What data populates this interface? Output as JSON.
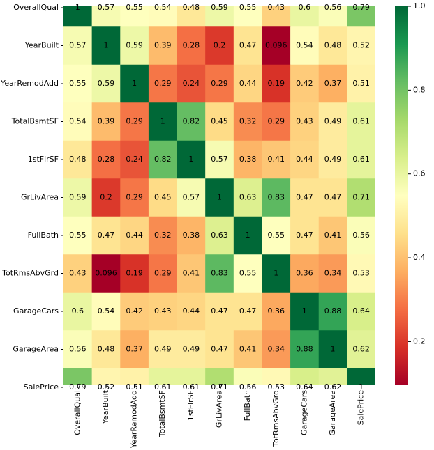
{
  "chart_data": {
    "type": "heatmap",
    "x": [
      "OverallQual",
      "YearBuilt",
      "YearRemodAdd",
      "TotalBsmtSF",
      "1stFlrSF",
      "GrLivArea",
      "FullBath",
      "TotRmsAbvGrd",
      "GarageCars",
      "GarageArea",
      "SalePrice"
    ],
    "y": [
      "OverallQual",
      "YearBuilt",
      "YearRemodAdd",
      "TotalBsmtSF",
      "1stFlrSF",
      "GrLivArea",
      "FullBath",
      "TotRmsAbvGrd",
      "GarageCars",
      "GarageArea",
      "SalePrice"
    ],
    "values": [
      [
        1,
        0.57,
        0.55,
        0.54,
        0.48,
        0.59,
        0.55,
        0.43,
        0.6,
        0.56,
        0.79
      ],
      [
        0.57,
        1,
        0.59,
        0.39,
        0.28,
        0.2,
        0.47,
        0.096,
        0.54,
        0.48,
        0.52
      ],
      [
        0.55,
        0.59,
        1,
        0.29,
        0.24,
        0.29,
        0.44,
        0.19,
        0.42,
        0.37,
        0.51
      ],
      [
        0.54,
        0.39,
        0.29,
        1,
        0.82,
        0.45,
        0.32,
        0.29,
        0.43,
        0.49,
        0.61
      ],
      [
        0.48,
        0.28,
        0.24,
        0.82,
        1,
        0.57,
        0.38,
        0.41,
        0.44,
        0.49,
        0.61
      ],
      [
        0.59,
        0.2,
        0.29,
        0.45,
        0.57,
        1,
        0.63,
        0.83,
        0.47,
        0.47,
        0.71
      ],
      [
        0.55,
        0.47,
        0.44,
        0.32,
        0.38,
        0.63,
        1,
        0.55,
        0.47,
        0.41,
        0.56
      ],
      [
        0.43,
        0.096,
        0.19,
        0.29,
        0.41,
        0.83,
        0.55,
        1,
        0.36,
        0.34,
        0.53
      ],
      [
        0.6,
        0.54,
        0.42,
        0.43,
        0.44,
        0.47,
        0.47,
        0.36,
        1,
        0.88,
        0.64
      ],
      [
        0.56,
        0.48,
        0.37,
        0.49,
        0.49,
        0.47,
        0.41,
        0.34,
        0.88,
        1,
        0.62
      ],
      [
        0.79,
        0.52,
        0.51,
        0.61,
        0.61,
        0.71,
        0.56,
        0.53,
        0.64,
        0.62,
        1
      ]
    ],
    "colormap": "RdYlGn",
    "clim": [
      0.096,
      1
    ],
    "cticks": [
      {
        "value": 0.2,
        "label": "0.2"
      },
      {
        "value": 0.4,
        "label": "0.4"
      },
      {
        "value": 0.6,
        "label": "0.6"
      },
      {
        "value": 0.8,
        "label": "0.8"
      },
      {
        "value": 1,
        "label": "1.0"
      }
    ]
  }
}
